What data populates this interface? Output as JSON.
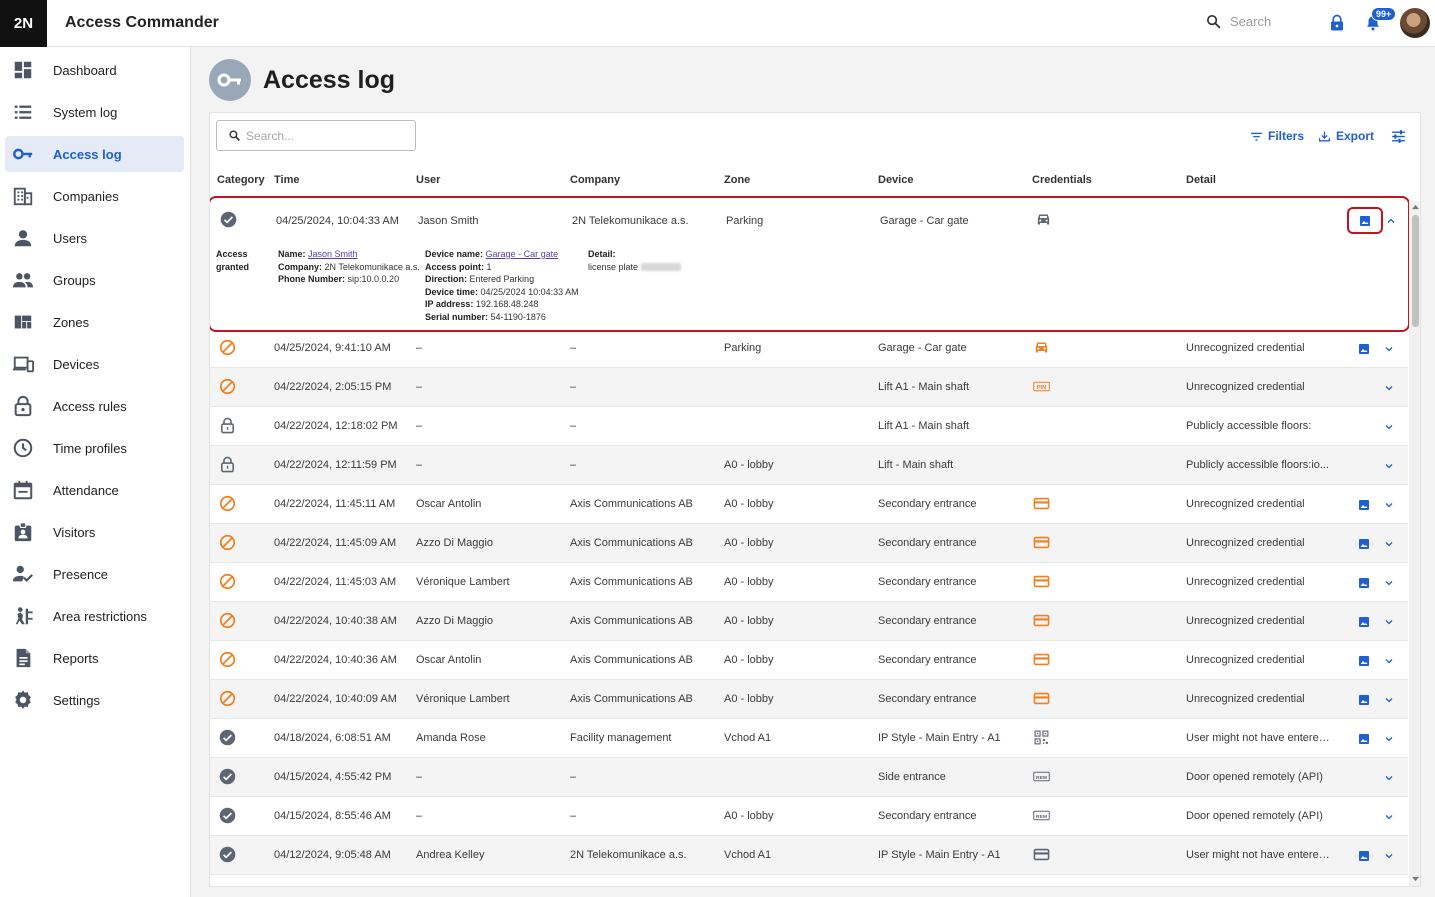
{
  "app": {
    "logo": "2N",
    "title": "Access Commander"
  },
  "topbar": {
    "search_placeholder": "Search",
    "notifications_badge": "99+"
  },
  "colors": {
    "accent": "#1f5fd1",
    "granted": "#6b7280",
    "denied": "#f07f1e",
    "highlight": "#c1121f"
  },
  "sidebar": {
    "items": [
      {
        "label": "Dashboard",
        "icon": "dashboard-icon"
      },
      {
        "label": "System log",
        "icon": "list-icon"
      },
      {
        "label": "Access log",
        "icon": "key-icon",
        "active": true
      },
      {
        "label": "Companies",
        "icon": "building-icon"
      },
      {
        "label": "Users",
        "icon": "user-icon"
      },
      {
        "label": "Groups",
        "icon": "group-icon"
      },
      {
        "label": "Zones",
        "icon": "zones-icon"
      },
      {
        "label": "Devices",
        "icon": "devices-icon"
      },
      {
        "label": "Access rules",
        "icon": "lock-icon"
      },
      {
        "label": "Time profiles",
        "icon": "clock-icon"
      },
      {
        "label": "Attendance",
        "icon": "calendar-icon"
      },
      {
        "label": "Visitors",
        "icon": "visitor-badge-icon"
      },
      {
        "label": "Presence",
        "icon": "presence-icon"
      },
      {
        "label": "Area restrictions",
        "icon": "area-icon"
      },
      {
        "label": "Reports",
        "icon": "report-icon"
      },
      {
        "label": "Settings",
        "icon": "gear-icon"
      }
    ]
  },
  "page": {
    "title": "Access log"
  },
  "toolbar": {
    "search_placeholder": "Search...",
    "filters_label": "Filters",
    "export_label": "Export"
  },
  "table": {
    "headers": [
      "Category",
      "Time",
      "User",
      "Company",
      "Zone",
      "Device",
      "Credentials",
      "Detail"
    ],
    "expanded": {
      "category": "granted",
      "time": "04/25/2024, 10:04:33 AM",
      "user": "Jason Smith",
      "company": "2N Telekomunikace a.s.",
      "zone": "Parking",
      "device": "Garage - Car gate",
      "credential": "car",
      "status_line1": "Access",
      "status_line2": "granted",
      "user_details": {
        "name_label": "Name:",
        "name": "Jason Smith",
        "company_label": "Company:",
        "company": "2N Telekomunikace a.s.",
        "phone_label": "Phone Number:",
        "phone": "sip:10.0.0.20"
      },
      "device_details": {
        "name_label": "Device name:",
        "name": "Garage - Car gate",
        "ap_label": "Access point:",
        "ap": "1",
        "direction_label": "Direction:",
        "direction": "Entered Parking",
        "time_label": "Device time:",
        "time": "04/25/2024 10:04:33 AM",
        "ip_label": "IP address:",
        "ip": "192.168.48.248",
        "serial_label": "Serial number:",
        "serial": "54-1190-1876"
      },
      "detail": {
        "label": "Detail:",
        "text": "license plate"
      }
    },
    "rows": [
      {
        "category": "denied",
        "time": "04/25/2024, 9:41:10 AM",
        "user": "–",
        "company": "–",
        "zone": "Parking",
        "device": "Garage - Car gate",
        "credential": "car",
        "detail": "Unrecognized credential",
        "image": true
      },
      {
        "category": "denied",
        "time": "04/22/2024, 2:05:15 PM",
        "user": "–",
        "company": "–",
        "zone": "",
        "device": "Lift A1 - Main shaft",
        "credential": "pin",
        "detail": "Unrecognized credential",
        "image": false
      },
      {
        "category": "public",
        "time": "04/22/2024, 12:18:02 PM",
        "user": "–",
        "company": "–",
        "zone": "",
        "device": "Lift A1 - Main shaft",
        "credential": "",
        "detail": "Publicly accessible floors:",
        "image": false
      },
      {
        "category": "public",
        "time": "04/22/2024, 12:11:59 PM",
        "user": "–",
        "company": "–",
        "zone": "A0 - lobby",
        "device": "Lift - Main shaft",
        "credential": "",
        "detail": "Publicly accessible floors:io...",
        "image": false
      },
      {
        "category": "denied",
        "time": "04/22/2024, 11:45:11 AM",
        "user": "Óscar Antolin",
        "company": "Axis Communications AB",
        "zone": "A0 - lobby",
        "device": "Secondary entrance",
        "credential": "card-orange",
        "detail": "Unrecognized credential",
        "image": true
      },
      {
        "category": "denied",
        "time": "04/22/2024, 11:45:09 AM",
        "user": "Azzo Di Maggio",
        "company": "Axis Communications AB",
        "zone": "A0 - lobby",
        "device": "Secondary entrance",
        "credential": "card-orange",
        "detail": "Unrecognized credential",
        "image": true
      },
      {
        "category": "denied",
        "time": "04/22/2024, 11:45:03 AM",
        "user": "Véronique Lambert",
        "company": "Axis Communications AB",
        "zone": "A0 - lobby",
        "device": "Secondary entrance",
        "credential": "card-orange",
        "detail": "Unrecognized credential",
        "image": true
      },
      {
        "category": "denied",
        "time": "04/22/2024, 10:40:38 AM",
        "user": "Azzo Di Maggio",
        "company": "Axis Communications AB",
        "zone": "A0 - lobby",
        "device": "Secondary entrance",
        "credential": "card-orange",
        "detail": "Unrecognized credential",
        "image": true
      },
      {
        "category": "denied",
        "time": "04/22/2024, 10:40:36 AM",
        "user": "Óscar Antolin",
        "company": "Axis Communications AB",
        "zone": "A0 - lobby",
        "device": "Secondary entrance",
        "credential": "card-orange",
        "detail": "Unrecognized credential",
        "image": true
      },
      {
        "category": "denied",
        "time": "04/22/2024, 10:40:09 AM",
        "user": "Véronique Lambert",
        "company": "Axis Communications AB",
        "zone": "A0 - lobby",
        "device": "Secondary entrance",
        "credential": "card-orange",
        "detail": "Unrecognized credential",
        "image": true
      },
      {
        "category": "granted",
        "time": "04/18/2024, 6:08:51 AM",
        "user": "Amanda Rose",
        "company": "Facility management",
        "zone": "Vchod A1",
        "device": "IP Style - Main Entry - A1",
        "credential": "qr",
        "detail": "User might not have entered...",
        "image": true
      },
      {
        "category": "granted",
        "time": "04/15/2024, 4:55:42 PM",
        "user": "–",
        "company": "–",
        "zone": "",
        "device": "Side entrance",
        "credential": "rem",
        "detail": "Door opened remotely (API)",
        "image": false
      },
      {
        "category": "granted",
        "time": "04/15/2024, 8:55:46 AM",
        "user": "–",
        "company": "–",
        "zone": "A0 - lobby",
        "device": "Secondary entrance",
        "credential": "rem",
        "detail": "Door opened remotely (API)",
        "image": false
      },
      {
        "category": "granted",
        "time": "04/12/2024, 9:05:48 AM",
        "user": "Andrea Kelley",
        "company": "2N Telekomunikace a.s.",
        "zone": "Vchod A1",
        "device": "IP Style - Main Entry - A1",
        "credential": "card-gray",
        "detail": "User might not have entered...",
        "image": true
      }
    ]
  }
}
